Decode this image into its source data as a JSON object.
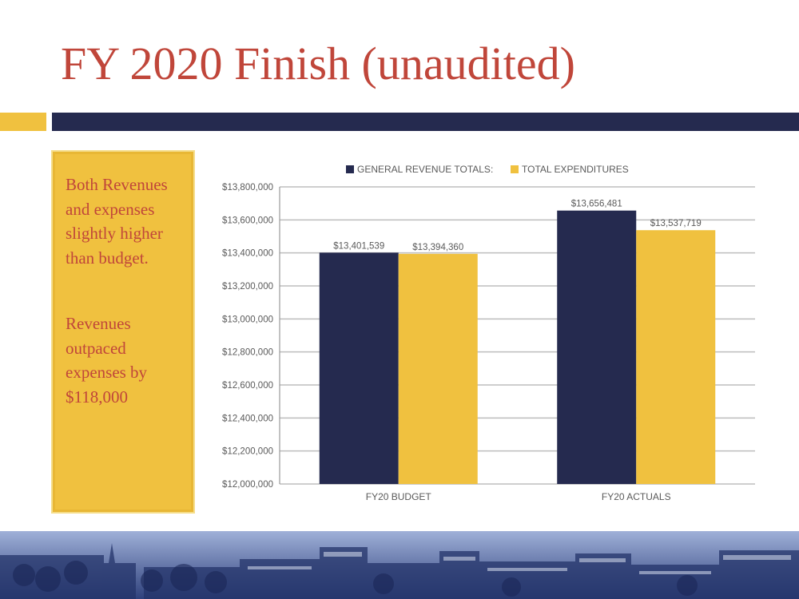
{
  "slide": {
    "title": "FY 2020 Finish (unaudited)"
  },
  "callout": {
    "paragraph_1": "Both Revenues and expenses slightly higher than budget.",
    "paragraph_2": "Revenues outpaced expenses by $118,000"
  },
  "colors": {
    "title": "#c0463a",
    "navy": "#252a4f",
    "gold": "#f0c13f",
    "city_tint": "#3b4f8c"
  },
  "chart_data": {
    "type": "bar",
    "title": "",
    "xlabel": "",
    "ylabel": "",
    "categories": [
      "FY20 BUDGET",
      "FY20 ACTUALS"
    ],
    "series": [
      {
        "name": "GENERAL REVENUE TOTALS:",
        "values": [
          13401539,
          13656481
        ],
        "labels": [
          "$13,401,539",
          "$13,656,481"
        ],
        "color": "#252a4f"
      },
      {
        "name": "TOTAL EXPENDITURES",
        "values": [
          13394360,
          13537719
        ],
        "labels": [
          "$13,394,360",
          "$13,537,719"
        ],
        "color": "#f0c13f"
      }
    ],
    "ylim": [
      12000000,
      13800000
    ],
    "yticks": [
      12000000,
      12200000,
      12400000,
      12600000,
      12800000,
      13000000,
      13200000,
      13400000,
      13600000,
      13800000
    ],
    "ytick_labels": [
      "$12,000,000",
      "$12,200,000",
      "$12,400,000",
      "$12,600,000",
      "$12,800,000",
      "$13,000,000",
      "$13,200,000",
      "$13,400,000",
      "$13,600,000",
      "$13,800,000"
    ],
    "grid": true,
    "legend": "top"
  }
}
